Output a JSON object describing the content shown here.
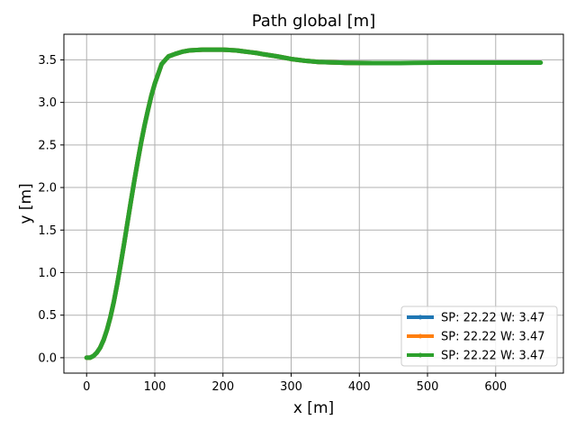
{
  "chart_data": {
    "type": "line",
    "title": "Path global [m]",
    "xlabel": "x [m]",
    "ylabel": "y [m]",
    "xlim": [
      -33.3,
      699.3
    ],
    "ylim": [
      -0.181,
      3.801
    ],
    "xticks": [
      0,
      100,
      200,
      300,
      400,
      500,
      600
    ],
    "xtick_labels": [
      "0",
      "100",
      "200",
      "300",
      "400",
      "500",
      "600"
    ],
    "yticks": [
      0.0,
      0.5,
      1.0,
      1.5,
      2.0,
      2.5,
      3.0,
      3.5
    ],
    "ytick_labels": [
      "0.0",
      "0.5",
      "1.0",
      "1.5",
      "2.0",
      "2.5",
      "3.0",
      "3.5"
    ],
    "grid": true,
    "legend_position": "lower-right",
    "series": [
      {
        "name": "SP: 22.22 W: 3.47",
        "color": "#1f77b4",
        "x": [
          0,
          5,
          10,
          15,
          20,
          25,
          30,
          35,
          40,
          45,
          50,
          55,
          60,
          65,
          70,
          75,
          80,
          85,
          90,
          95,
          100,
          110,
          120,
          130,
          140,
          150,
          160,
          170,
          180,
          190,
          200,
          210,
          220,
          230,
          240,
          250,
          260,
          280,
          300,
          320,
          340,
          360,
          380,
          400,
          420,
          440,
          460
        ],
        "y": [
          0.0,
          0.0,
          0.02,
          0.06,
          0.12,
          0.21,
          0.33,
          0.48,
          0.66,
          0.87,
          1.1,
          1.34,
          1.59,
          1.84,
          2.08,
          2.31,
          2.53,
          2.73,
          2.91,
          3.08,
          3.22,
          3.45,
          3.54,
          3.57,
          3.595,
          3.61,
          3.615,
          3.62,
          3.62,
          3.62,
          3.62,
          3.615,
          3.61,
          3.6,
          3.59,
          3.58,
          3.565,
          3.54,
          3.51,
          3.49,
          3.475,
          3.47,
          3.465,
          3.463,
          3.462,
          3.462,
          3.462
        ]
      },
      {
        "name": "SP: 22.22 W: 3.47",
        "color": "#ff7f0e",
        "x": [
          0,
          5,
          10,
          15,
          20,
          25,
          30,
          35,
          40,
          45,
          50,
          55,
          60,
          65,
          70,
          75,
          80,
          85,
          90,
          95,
          100,
          110,
          120,
          130,
          140,
          150,
          160,
          170,
          180,
          190,
          200,
          210,
          220,
          230,
          240,
          250,
          260,
          280,
          300,
          320,
          340,
          360,
          380,
          400,
          420,
          440,
          460
        ],
        "y": [
          0.0,
          0.0,
          0.02,
          0.06,
          0.12,
          0.21,
          0.33,
          0.48,
          0.66,
          0.87,
          1.1,
          1.34,
          1.59,
          1.84,
          2.08,
          2.31,
          2.53,
          2.73,
          2.91,
          3.08,
          3.22,
          3.45,
          3.54,
          3.57,
          3.595,
          3.61,
          3.615,
          3.62,
          3.62,
          3.62,
          3.62,
          3.615,
          3.61,
          3.6,
          3.59,
          3.58,
          3.565,
          3.54,
          3.51,
          3.49,
          3.475,
          3.47,
          3.465,
          3.463,
          3.462,
          3.462,
          3.462
        ]
      },
      {
        "name": "SP: 22.22 W: 3.47",
        "color": "#2ca02c",
        "x": [
          0,
          5,
          10,
          15,
          20,
          25,
          30,
          35,
          40,
          45,
          50,
          55,
          60,
          65,
          70,
          75,
          80,
          85,
          90,
          95,
          100,
          110,
          120,
          130,
          140,
          150,
          160,
          170,
          180,
          190,
          200,
          210,
          220,
          230,
          240,
          250,
          260,
          280,
          300,
          320,
          340,
          360,
          380,
          400,
          420,
          440,
          460,
          480,
          500,
          520,
          540,
          560,
          580,
          600,
          620,
          640,
          666
        ],
        "y": [
          0.0,
          0.0,
          0.02,
          0.06,
          0.12,
          0.21,
          0.33,
          0.48,
          0.66,
          0.87,
          1.1,
          1.34,
          1.59,
          1.84,
          2.08,
          2.31,
          2.53,
          2.73,
          2.91,
          3.08,
          3.22,
          3.45,
          3.54,
          3.57,
          3.595,
          3.61,
          3.615,
          3.62,
          3.62,
          3.62,
          3.62,
          3.615,
          3.61,
          3.6,
          3.59,
          3.58,
          3.565,
          3.54,
          3.51,
          3.49,
          3.475,
          3.47,
          3.465,
          3.463,
          3.462,
          3.462,
          3.462,
          3.465,
          3.466,
          3.467,
          3.467,
          3.467,
          3.467,
          3.467,
          3.467,
          3.467,
          3.467
        ]
      }
    ]
  }
}
